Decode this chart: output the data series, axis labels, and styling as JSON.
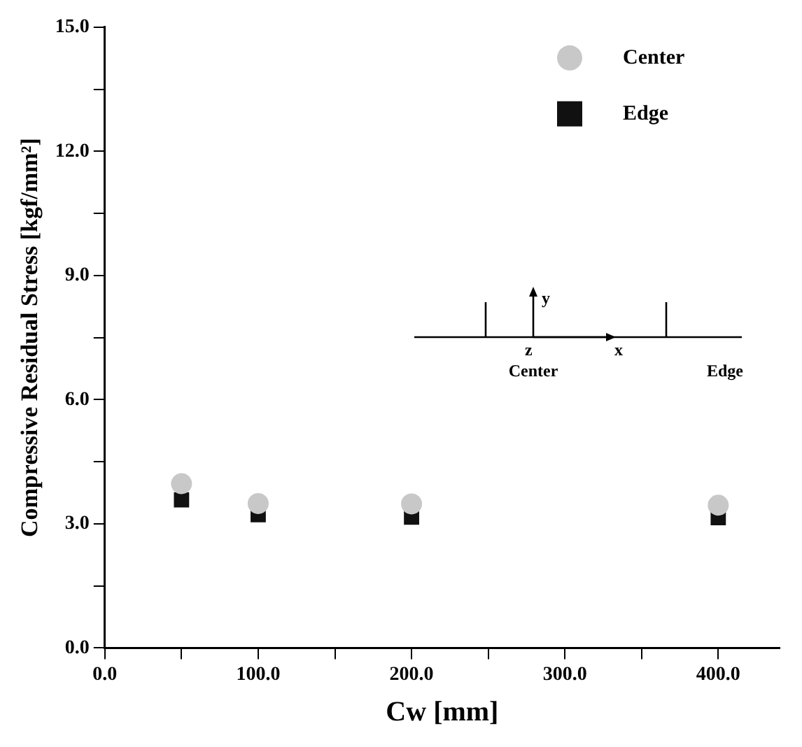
{
  "chart_data": {
    "type": "scatter",
    "xlabel": "Cw [mm]",
    "ylabel": "Compressive Residual Stress [kgf/mm²]",
    "xlim": [
      0,
      440
    ],
    "xticks": [
      {
        "value": 0,
        "label": "0.0"
      },
      {
        "value": 50,
        "label": null
      },
      {
        "value": 100,
        "label": "100.0"
      },
      {
        "value": 150,
        "label": null
      },
      {
        "value": 200,
        "label": "200.0"
      },
      {
        "value": 250,
        "label": null
      },
      {
        "value": 300,
        "label": "300.0"
      },
      {
        "value": 350,
        "label": null
      },
      {
        "value": 400,
        "label": "400.0"
      }
    ],
    "ylim": [
      0,
      15
    ],
    "yticks": [
      {
        "value": 0,
        "label": "0.0"
      },
      {
        "value": 1.5,
        "label": null
      },
      {
        "value": 3,
        "label": "3.0"
      },
      {
        "value": 4.5,
        "label": null
      },
      {
        "value": 6,
        "label": "6.0"
      },
      {
        "value": 7.5,
        "label": null
      },
      {
        "value": 9,
        "label": "9.0"
      },
      {
        "value": 10.5,
        "label": null
      },
      {
        "value": 12,
        "label": "12.0"
      },
      {
        "value": 13.5,
        "label": null
      },
      {
        "value": 15,
        "label": "15.0"
      }
    ],
    "x": [
      50,
      100,
      200,
      400
    ],
    "series": [
      {
        "name": "Center",
        "color": "#c8c8c8",
        "marker": "circle",
        "values": [
          3.97,
          3.49,
          3.48,
          3.45
        ]
      },
      {
        "name": "Edge",
        "color": "#111111",
        "marker": "square",
        "values": [
          3.58,
          3.22,
          3.16,
          3.15
        ]
      }
    ],
    "legend": "top right",
    "grid": false,
    "annotations": [
      "y",
      "z",
      "x",
      "Center",
      "Edge"
    ]
  }
}
